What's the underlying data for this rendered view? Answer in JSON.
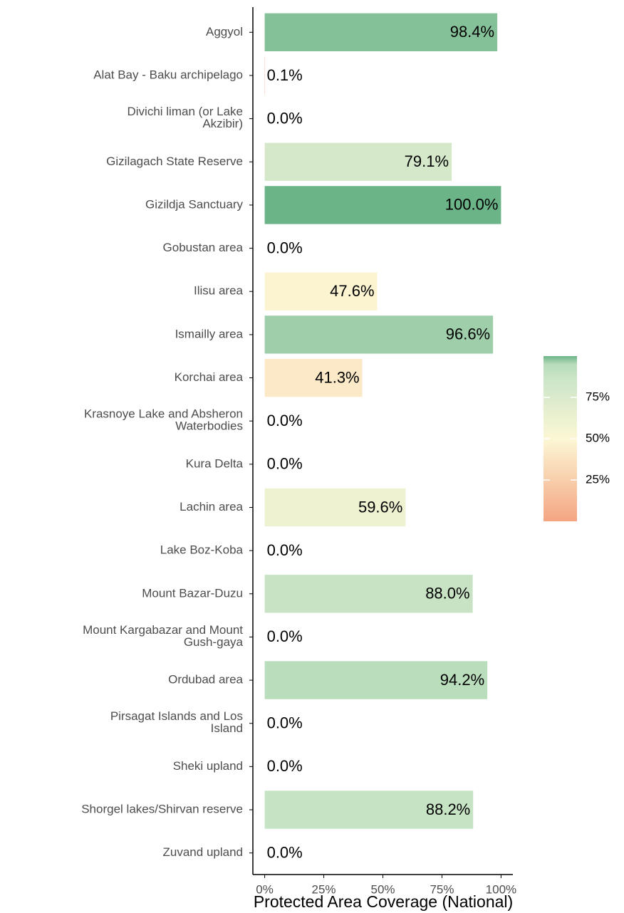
{
  "chart_data": {
    "type": "barh",
    "x_label": "Protected Area Coverage (National)",
    "categories": [
      "Aggyol",
      "Alat Bay - Baku archipelago",
      "Divichi liman (or Lake\nAkzibir)",
      "Gizilagach State Reserve",
      "Gizildja Sanctuary",
      "Gobustan area",
      "Ilisu area",
      "Ismailly area",
      "Korchai area",
      "Krasnoye Lake and Absheron\nWaterbodies",
      "Kura Delta",
      "Lachin area",
      "Lake Boz-Koba",
      "Mount Bazar-Duzu",
      "Mount Kargabazar and Mount\nGush-gaya",
      "Ordubad area",
      "Pirsagat Islands and Los\nIsland",
      "Sheki upland",
      "Shorgel lakes/Shirvan reserve",
      "Zuvand upland"
    ],
    "values": [
      98.4,
      0.1,
      0,
      79.1,
      100,
      0,
      47.6,
      96.6,
      41.3,
      0,
      0,
      59.6,
      0,
      88,
      0,
      94.2,
      0,
      0,
      88.2,
      0
    ],
    "value_labels": [
      "98.4%",
      "0.1%",
      "0.0%",
      "79.1%",
      "100.0%",
      "0.0%",
      "47.6%",
      "96.6%",
      "41.3%",
      "0.0%",
      "0.0%",
      "59.6%",
      "0.0%",
      "88.0%",
      "0.0%",
      "94.2%",
      "0.0%",
      "0.0%",
      "88.2%",
      "0.0%"
    ],
    "xlim": [
      -5,
      105
    ],
    "xticks": [
      {
        "value": 0,
        "label": "0%"
      },
      {
        "value": 25,
        "label": "25%"
      },
      {
        "value": 50,
        "label": "50%"
      },
      {
        "value": 75,
        "label": "75%"
      },
      {
        "value": 100,
        "label": "100%"
      }
    ],
    "color_scale": [
      {
        "value": 0,
        "color": "#f4a582"
      },
      {
        "value": 50,
        "color": "#fcf7d5"
      },
      {
        "value": 85,
        "color": "#cde6c8"
      },
      {
        "value": 95,
        "color": "#b8dcbb"
      },
      {
        "value": 100,
        "color": "#6bb487"
      }
    ],
    "colorlim": [
      0,
      100
    ],
    "colorbar_ticks": [
      {
        "value": 25,
        "label": "25%"
      },
      {
        "value": 50,
        "label": "50%"
      },
      {
        "value": 75,
        "label": "75%"
      }
    ]
  }
}
